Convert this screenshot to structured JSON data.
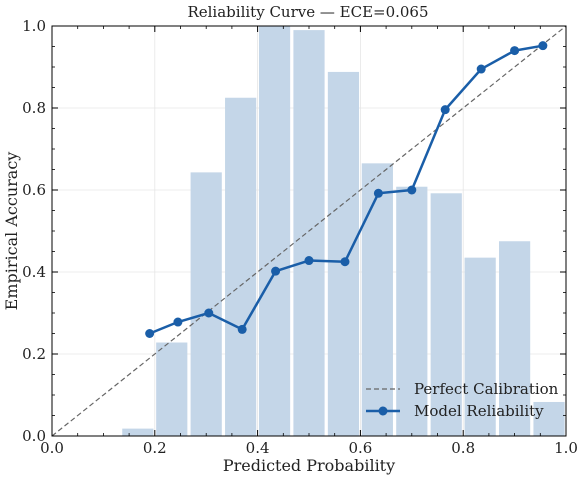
{
  "chart_data": {
    "type": "bar",
    "title": "Reliability Curve — ECE=0.065",
    "xlabel": "Predicted Probability",
    "ylabel": "Empirical Accuracy",
    "xlim": [
      0,
      1
    ],
    "ylim": [
      0,
      1
    ],
    "xticks": [
      "0.0",
      "0.2",
      "0.4",
      "0.6",
      "0.8",
      "1.0"
    ],
    "yticks": [
      "0.0",
      "0.2",
      "0.4",
      "0.6",
      "0.8",
      "1.0"
    ],
    "grid": true,
    "legend_position": "bottom-right",
    "histogram": {
      "color": "#c4d6e8",
      "bin_width": 0.0667,
      "bin_centers": [
        0.167,
        0.233,
        0.3,
        0.367,
        0.433,
        0.5,
        0.567,
        0.633,
        0.7,
        0.767,
        0.833,
        0.9,
        0.967
      ],
      "heights": [
        0.018,
        0.228,
        0.643,
        0.825,
        1.0,
        0.99,
        0.888,
        0.665,
        0.608,
        0.592,
        0.435,
        0.475,
        0.083
      ]
    },
    "series": [
      {
        "name": "Perfect Calibration",
        "style": "dashed",
        "color": "#666666",
        "x": [
          0,
          1
        ],
        "y": [
          0,
          1
        ]
      },
      {
        "name": "Model Reliability",
        "style": "solid-markers",
        "color": "#1a5ea8",
        "x": [
          0.19,
          0.245,
          0.305,
          0.37,
          0.435,
          0.5,
          0.57,
          0.635,
          0.7,
          0.765,
          0.835,
          0.9,
          0.955
        ],
        "y": [
          0.25,
          0.278,
          0.3,
          0.26,
          0.402,
          0.428,
          0.425,
          0.592,
          0.6,
          0.796,
          0.895,
          0.94,
          0.952
        ]
      }
    ]
  }
}
